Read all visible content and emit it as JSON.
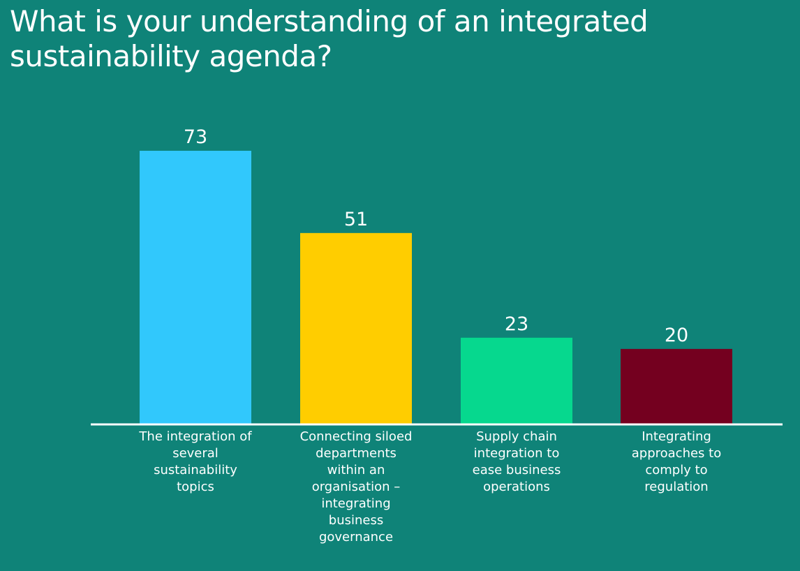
{
  "title": "What is your understanding of an integrated sustainability agenda?",
  "colors": {
    "background": "#0f8378",
    "axis": "#ffffff",
    "text": "#ffffff"
  },
  "chart_data": {
    "type": "bar",
    "categories": [
      "The integration of several sustainability topics",
      "Connecting siloed departments within an organisation – integrating business governance",
      "Supply chain integration to ease business operations",
      "Integrating approaches to comply to regulation"
    ],
    "values": [
      73,
      51,
      23,
      20
    ],
    "bar_colors": [
      "#31c8fc",
      "#ffcd00",
      "#06d88e",
      "#74001f"
    ],
    "title": "What is your understanding of an integrated sustainability agenda?",
    "xlabel": "",
    "ylabel": "",
    "ylim": [
      0,
      73
    ],
    "grid": false,
    "data_labels": true
  }
}
